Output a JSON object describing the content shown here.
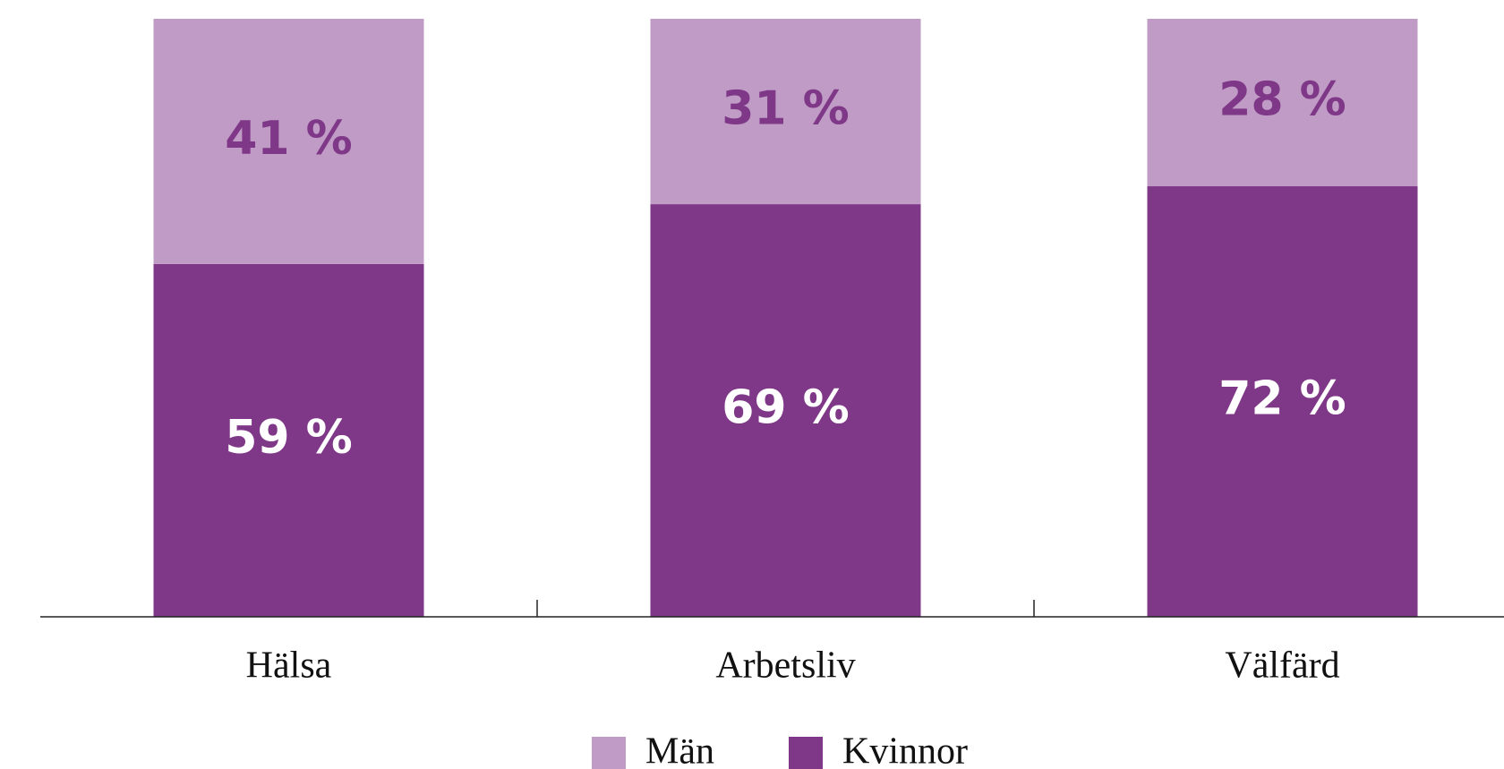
{
  "chart_data": {
    "type": "stacked_bar",
    "categories": [
      "Hälsa",
      "Arbetsliv",
      "Välfärd"
    ],
    "series": [
      {
        "name": "Kvinnor",
        "color": "#7f3787",
        "label_color": "#ffffff",
        "values": [
          59,
          69,
          72
        ],
        "value_labels": [
          "59 %",
          "69 %",
          "72 %"
        ]
      },
      {
        "name": "Män",
        "color": "#bf9bc6",
        "label_color": "#7f3787",
        "values": [
          41,
          31,
          28
        ],
        "value_labels": [
          "41 %",
          "31 %",
          "28 %"
        ]
      }
    ],
    "ylim": [
      0,
      100
    ],
    "legend": "bottom"
  }
}
